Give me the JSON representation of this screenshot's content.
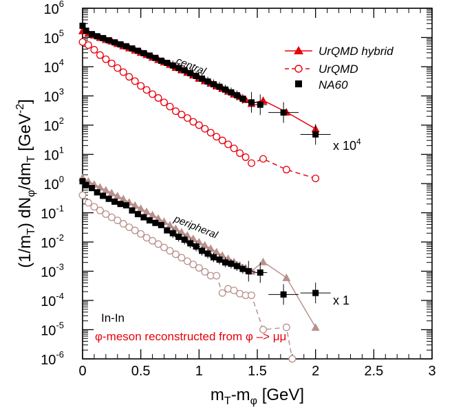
{
  "chart_data": {
    "type": "scatter",
    "xlabel": "m_T-m_φ [GeV]",
    "ylabel": "(1/m_T) dN_φ/dm_T [GeV^-2]",
    "xlim": [
      0,
      3
    ],
    "ylim_log10": [
      -6,
      6
    ],
    "y_scale": "log",
    "x_ticks": [
      0,
      0.5,
      1,
      1.5,
      2,
      2.5,
      3
    ],
    "x_tick_labels": [
      "0",
      "0.5",
      "1",
      "1.5",
      "2",
      "2.5",
      "3"
    ],
    "y_tick_exponents": [
      -6,
      -5,
      -4,
      -3,
      -2,
      -1,
      0,
      1,
      2,
      3,
      4,
      5,
      6
    ],
    "legend_position": "top-right",
    "legend": [
      {
        "label": "UrQMD hybrid",
        "marker": "triangle",
        "line": "solid",
        "color": "#e8000b"
      },
      {
        "label": "UrQMD",
        "marker": "open-circle",
        "line": "dashed",
        "color": "#e8000b"
      },
      {
        "label": "NA60",
        "marker": "square",
        "line": "none",
        "color": "#000000"
      }
    ],
    "annotations": {
      "central": "central",
      "peripheral": "peripheral",
      "scale_central": "x 10",
      "scale_central_exp": "4",
      "scale_peripheral": "x 1",
      "system": "In-In",
      "reconstruction": "φ-meson reconstructed from φ –> μμ"
    },
    "series": [
      {
        "name": "UrQMD hybrid",
        "group": "central",
        "color": "#e8000b",
        "x": [
          0.0,
          0.05,
          0.1,
          0.15,
          0.2,
          0.25,
          0.3,
          0.35,
          0.4,
          0.45,
          0.5,
          0.55,
          0.6,
          0.65,
          0.7,
          0.75,
          0.8,
          0.85,
          0.9,
          0.95,
          1.0,
          1.05,
          1.1,
          1.15,
          1.2,
          1.25,
          1.3,
          1.35,
          1.4,
          1.45,
          1.55,
          1.75,
          2.0
        ],
        "y": [
          170000,
          140000,
          120000,
          100000,
          85000,
          75000,
          62000,
          52000,
          44000,
          37000,
          31000,
          26000,
          21000,
          17500,
          14500,
          12000,
          9500,
          7800,
          6400,
          5200,
          4000,
          3300,
          2700,
          2200,
          1800,
          1450,
          1150,
          950,
          750,
          550,
          700,
          280,
          75
        ]
      },
      {
        "name": "UrQMD",
        "group": "central",
        "color": "#e8000b",
        "x": [
          0.0,
          0.05,
          0.1,
          0.15,
          0.2,
          0.25,
          0.3,
          0.35,
          0.4,
          0.45,
          0.5,
          0.55,
          0.6,
          0.65,
          0.7,
          0.75,
          0.8,
          0.85,
          0.9,
          0.95,
          1.0,
          1.05,
          1.1,
          1.15,
          1.2,
          1.25,
          1.3,
          1.35,
          1.4,
          1.45,
          1.55,
          1.75,
          2.0
        ],
        "y": [
          70000,
          55000,
          38000,
          25000,
          18000,
          13000,
          9000,
          6500,
          4500,
          3200,
          2200,
          1600,
          1150,
          850,
          600,
          430,
          300,
          230,
          175,
          130,
          100,
          75,
          55,
          40,
          30,
          22,
          16,
          11,
          8,
          5,
          7,
          3,
          1.5
        ]
      },
      {
        "name": "NA60",
        "group": "central",
        "color": "#000000",
        "x": [
          0.0,
          0.03,
          0.08,
          0.125,
          0.175,
          0.225,
          0.275,
          0.325,
          0.375,
          0.425,
          0.475,
          0.525,
          0.575,
          0.625,
          0.675,
          0.725,
          0.775,
          0.825,
          0.875,
          0.925,
          0.975,
          1.025,
          1.075,
          1.125,
          1.175,
          1.225,
          1.275,
          1.325,
          1.375,
          1.45,
          1.525,
          1.725,
          2.0
        ],
        "y": [
          250000,
          170000,
          130000,
          110000,
          95000,
          80000,
          68000,
          58000,
          50000,
          42000,
          35000,
          29000,
          24000,
          20000,
          16000,
          13500,
          11000,
          9000,
          7500,
          6000,
          4800,
          3900,
          3100,
          2500,
          2050,
          1650,
          1320,
          1050,
          800,
          600,
          500,
          270,
          48
        ]
      },
      {
        "name": "UrQMD hybrid",
        "group": "peripheral",
        "color": "#b8908c",
        "x": [
          0.0,
          0.05,
          0.1,
          0.15,
          0.2,
          0.25,
          0.3,
          0.35,
          0.4,
          0.45,
          0.5,
          0.55,
          0.6,
          0.65,
          0.7,
          0.75,
          0.8,
          0.85,
          0.9,
          0.95,
          1.0,
          1.05,
          1.1,
          1.15,
          1.2,
          1.25,
          1.3,
          1.35,
          1.4,
          1.45,
          1.55,
          1.75,
          2.0
        ],
        "y": [
          1.6,
          1.2,
          0.95,
          0.75,
          0.6,
          0.48,
          0.38,
          0.3,
          0.23,
          0.18,
          0.14,
          0.11,
          0.085,
          0.065,
          0.05,
          0.038,
          0.029,
          0.022,
          0.017,
          0.013,
          0.01,
          0.0078,
          0.006,
          0.0046,
          0.0035,
          0.0027,
          0.0021,
          0.0016,
          0.0013,
          0.001,
          0.0021,
          0.0006,
          1.2e-05
        ]
      },
      {
        "name": "UrQMD",
        "group": "peripheral",
        "color": "#b8908c",
        "x": [
          0.0,
          0.05,
          0.1,
          0.15,
          0.2,
          0.25,
          0.3,
          0.35,
          0.4,
          0.45,
          0.5,
          0.55,
          0.6,
          0.65,
          0.7,
          0.75,
          0.8,
          0.85,
          0.9,
          0.95,
          1.0,
          1.05,
          1.1,
          1.15,
          1.2,
          1.25,
          1.3,
          1.35,
          1.4,
          1.45,
          1.55,
          1.75,
          1.8
        ],
        "y": [
          0.4,
          0.22,
          0.16,
          0.12,
          0.09,
          0.07,
          0.055,
          0.042,
          0.032,
          0.025,
          0.019,
          0.014,
          0.011,
          0.0085,
          0.0065,
          0.005,
          0.0038,
          0.0029,
          0.0022,
          0.0017,
          0.0013,
          0.00095,
          0.0007,
          0.0007,
          0.00018,
          0.00025,
          0.00022,
          0.00017,
          0.00015,
          0.00015,
          1e-05,
          1.2e-05,
          1e-06
        ]
      },
      {
        "name": "NA60",
        "group": "peripheral",
        "color": "#000000",
        "x": [
          0.0,
          0.03,
          0.08,
          0.125,
          0.175,
          0.225,
          0.275,
          0.325,
          0.375,
          0.425,
          0.475,
          0.525,
          0.575,
          0.625,
          0.675,
          0.725,
          0.775,
          0.825,
          0.875,
          0.925,
          0.975,
          1.025,
          1.075,
          1.125,
          1.175,
          1.225,
          1.275,
          1.325,
          1.375,
          1.425,
          1.525,
          1.725,
          2.0
        ],
        "y": [
          1.2,
          0.9,
          0.7,
          0.5,
          0.38,
          0.3,
          0.24,
          0.2,
          0.18,
          0.12,
          0.09,
          0.07,
          0.055,
          0.045,
          0.038,
          0.025,
          0.02,
          0.015,
          0.012,
          0.009,
          0.007,
          0.005,
          0.004,
          0.003,
          0.0025,
          0.002,
          0.0018,
          0.0015,
          0.0012,
          0.001,
          0.0009,
          0.00016,
          0.00018
        ]
      }
    ]
  }
}
